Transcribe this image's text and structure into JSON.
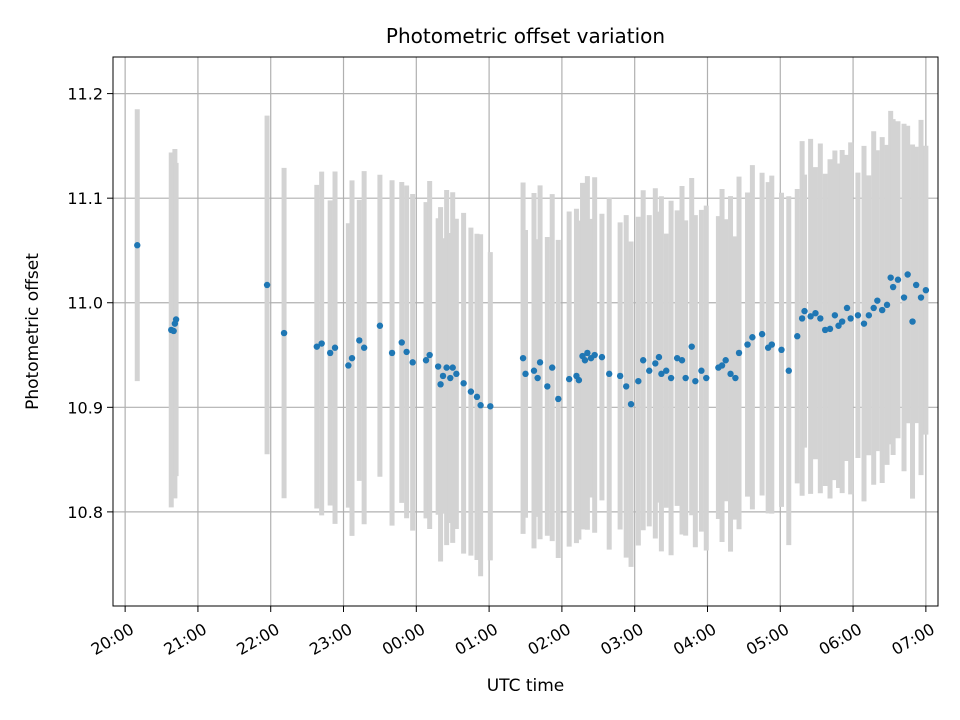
{
  "chart_data": {
    "type": "scatter",
    "title": "Photometric offset variation",
    "xlabel": "UTC time",
    "ylabel": "Photometric offset",
    "xlim": [
      "19:50",
      "07:10"
    ],
    "ylim": [
      10.71,
      11.235
    ],
    "grid": true,
    "x_ticks": [
      "20:00",
      "21:00",
      "22:00",
      "23:00",
      "00:00",
      "01:00",
      "02:00",
      "03:00",
      "04:00",
      "05:00",
      "06:00",
      "07:00"
    ],
    "y_ticks": [
      "10.8",
      "10.9",
      "11.0",
      "11.1",
      "11.2"
    ],
    "colors": {
      "marker": "#1f77b4",
      "errorbar": "#d3d3d3",
      "grid": "#b0b0b0"
    },
    "series": [
      {
        "x": [
          "20:10",
          "20:38",
          "20:40",
          "20:41",
          "20:42",
          "21:57",
          "22:11",
          "22:38",
          "22:42",
          "22:49",
          "22:53",
          "23:04",
          "23:07",
          "23:13",
          "23:17",
          "23:30",
          "23:40",
          "23:48",
          "23:52",
          "23:57",
          "24:08",
          "24:11",
          "24:18",
          "24:20",
          "24:22",
          "24:25",
          "24:28",
          "24:30",
          "24:33",
          "24:39",
          "24:45",
          "24:50",
          "24:53",
          "25:01",
          "25:28",
          "25:30",
          "25:37",
          "25:40",
          "25:42",
          "25:48",
          "25:52",
          "25:57",
          "26:06",
          "26:12",
          "26:14",
          "26:17",
          "26:19",
          "26:21",
          "26:24",
          "26:27",
          "26:33",
          "26:39",
          "26:48",
          "26:53",
          "26:57",
          "27:03",
          "27:07",
          "27:12",
          "27:17",
          "27:20",
          "27:22",
          "27:26",
          "27:30",
          "27:35",
          "27:39",
          "27:42",
          "27:47",
          "27:50",
          "27:55",
          "27:59",
          "28:09",
          "28:12",
          "28:15",
          "28:19",
          "28:23",
          "28:26",
          "28:33",
          "28:37",
          "28:45",
          "28:50",
          "28:53",
          "29:01",
          "29:07",
          "29:14",
          "29:18",
          "29:20",
          "29:25",
          "29:29",
          "29:33",
          "29:37",
          "29:41",
          "29:45",
          "29:48",
          "29:51",
          "29:55",
          "29:58",
          "30:04",
          "30:09",
          "30:13",
          "30:17",
          "30:20",
          "30:24",
          "30:28",
          "30:31",
          "30:33",
          "30:37",
          "30:42",
          "30:45",
          "30:49",
          "30:52",
          "30:56",
          "31:00"
        ],
        "y": [
          11.055,
          10.974,
          10.973,
          10.98,
          10.984,
          11.017,
          10.971,
          10.958,
          10.961,
          10.952,
          10.957,
          10.94,
          10.947,
          10.964,
          10.957,
          10.978,
          10.952,
          10.962,
          10.953,
          10.943,
          10.945,
          10.95,
          10.939,
          10.922,
          10.93,
          10.938,
          10.928,
          10.938,
          10.932,
          10.923,
          10.915,
          10.91,
          10.902,
          10.901,
          10.947,
          10.932,
          10.935,
          10.928,
          10.943,
          10.92,
          10.938,
          10.908,
          10.927,
          10.93,
          10.926,
          10.949,
          10.945,
          10.952,
          10.947,
          10.95,
          10.948,
          10.932,
          10.93,
          10.92,
          10.903,
          10.925,
          10.945,
          10.935,
          10.942,
          10.948,
          10.932,
          10.935,
          10.928,
          10.947,
          10.945,
          10.928,
          10.958,
          10.925,
          10.935,
          10.928,
          10.938,
          10.94,
          10.945,
          10.932,
          10.928,
          10.952,
          10.96,
          10.967,
          10.97,
          10.957,
          10.96,
          10.955,
          10.935,
          10.968,
          10.985,
          10.992,
          10.987,
          10.99,
          10.985,
          10.974,
          10.975,
          10.988,
          10.978,
          10.982,
          10.995,
          10.985,
          10.988,
          10.98,
          10.988,
          10.995,
          11.002,
          10.993,
          10.998,
          11.024,
          11.015,
          11.022,
          11.005,
          11.027,
          10.982,
          11.017,
          11.005,
          11.012
        ]
      }
    ]
  }
}
